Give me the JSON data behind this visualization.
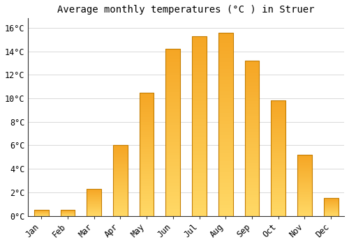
{
  "title": "Average monthly temperatures (°C ) in Struer",
  "months": [
    "Jan",
    "Feb",
    "Mar",
    "Apr",
    "May",
    "Jun",
    "Jul",
    "Aug",
    "Sep",
    "Oct",
    "Nov",
    "Dec"
  ],
  "values": [
    0.5,
    0.5,
    2.3,
    6.0,
    10.5,
    14.2,
    15.3,
    15.6,
    13.2,
    9.8,
    5.2,
    1.5
  ],
  "bar_color_top": "#F5A623",
  "bar_color_bottom": "#FFD966",
  "bar_edge_color": "#C47D00",
  "background_color": "#FFFFFF",
  "grid_color": "#D8D8D8",
  "yticks": [
    0,
    2,
    4,
    6,
    8,
    10,
    12,
    14,
    16
  ],
  "ylim": [
    0,
    16.8
  ],
  "bar_width": 0.55,
  "title_fontsize": 10,
  "tick_fontsize": 8.5,
  "tick_font": "monospace"
}
